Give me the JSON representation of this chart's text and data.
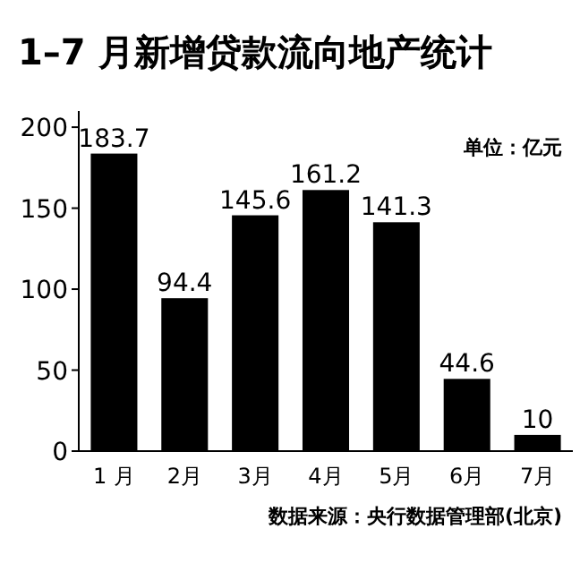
{
  "chart_data": {
    "type": "bar",
    "title": "1–7 月新增贷款流向地产统计",
    "categories": [
      "1 月",
      "2月",
      "3月",
      "4月",
      "5月",
      "6月",
      "7月"
    ],
    "values": [
      183.7,
      94.4,
      145.6,
      161.2,
      141.3,
      44.6,
      10
    ],
    "color": "#000000",
    "ylim": [
      0,
      210
    ],
    "yticks": [
      0,
      50,
      100,
      150,
      200
    ],
    "data_labels": true,
    "annotations": [
      "单位：亿元",
      "数据来源：央行数据管理部(北京)"
    ]
  }
}
